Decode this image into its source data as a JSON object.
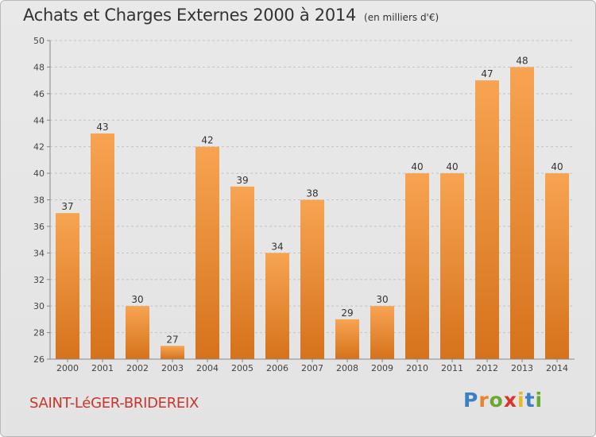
{
  "header": {
    "title": "Achats et Charges Externes 2000 à 2014",
    "unit": "(en milliers d'€)"
  },
  "footer": {
    "place": "SAINT-LéGER-BRIDEREIX",
    "logo_letters": [
      "P",
      "r",
      "o",
      "x",
      "i",
      "t",
      "i"
    ],
    "logo_colors": [
      "#3b7fc4",
      "#e8842a",
      "#6aa832",
      "#d8342c",
      "#e8b820",
      "#3b7fc4",
      "#6aa832"
    ]
  },
  "colors": {
    "bar_light": "#f7a452",
    "bar_dark": "#d6721b",
    "grid": "#c4c4c4",
    "axis": "#888888"
  },
  "chart_data": {
    "type": "bar",
    "title": "Achats et Charges Externes 2000 à 2014",
    "subtitle": "(en milliers d'€)",
    "categories": [
      "2000",
      "2001",
      "2002",
      "2003",
      "2004",
      "2005",
      "2006",
      "2007",
      "2008",
      "2009",
      "2010",
      "2011",
      "2012",
      "2013",
      "2014"
    ],
    "values": [
      37,
      43,
      30,
      27,
      42,
      39,
      34,
      38,
      29,
      30,
      40,
      40,
      47,
      48,
      40
    ],
    "ylim": [
      26,
      50
    ],
    "yticks": [
      "26",
      "28",
      "30",
      "32",
      "34",
      "36",
      "38",
      "40",
      "42",
      "44",
      "46",
      "48",
      "50"
    ],
    "grid": "horizontal dashed"
  }
}
